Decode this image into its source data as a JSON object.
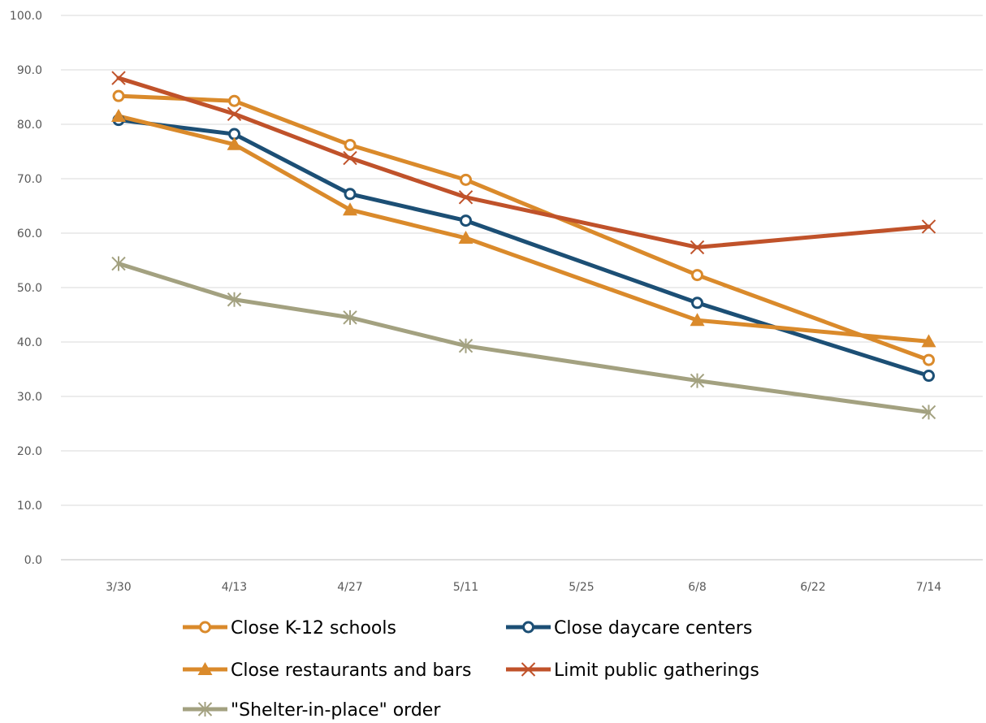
{
  "chart_data": {
    "type": "line",
    "x": [
      "3/30",
      "4/13",
      "4/27",
      "5/11",
      "5/25",
      "6/8",
      "6/22",
      "7/14"
    ],
    "ylim": [
      0,
      100
    ],
    "yticks": [
      "0.0",
      "10.0",
      "20.0",
      "30.0",
      "40.0",
      "50.0",
      "60.0",
      "70.0",
      "80.0",
      "90.0",
      "100.0"
    ],
    "grid": true,
    "legend_position": "bottom",
    "series": [
      {
        "name": "Close K-12 schools",
        "color": "#DA8A2B",
        "marker": "open-circle",
        "values": [
          85.2,
          84.3,
          76.2,
          69.8,
          null,
          52.3,
          null,
          36.7
        ]
      },
      {
        "name": "Close daycare centers",
        "color": "#1C4F75",
        "marker": "open-circle",
        "values": [
          80.8,
          78.2,
          67.2,
          62.3,
          null,
          47.2,
          null,
          33.8
        ]
      },
      {
        "name": "Close restaurants and bars",
        "color": "#DA8A2B",
        "marker": "triangle",
        "values": [
          81.5,
          76.3,
          64.3,
          59.1,
          null,
          44.0,
          null,
          40.1
        ]
      },
      {
        "name": "Limit public gatherings",
        "color": "#C0522A",
        "marker": "x",
        "values": [
          88.5,
          81.9,
          73.8,
          66.6,
          null,
          57.4,
          null,
          61.2
        ]
      },
      {
        "name": "\"Shelter-in-place\" order",
        "color": "#A3A180",
        "marker": "star",
        "values": [
          54.4,
          47.8,
          44.5,
          39.3,
          null,
          32.9,
          null,
          27.1
        ]
      }
    ]
  }
}
